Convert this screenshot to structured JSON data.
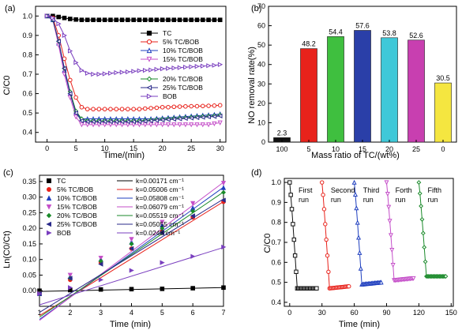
{
  "chart_data": [
    {
      "panel": "(a)",
      "type": "line",
      "xlabel": "Time/(min)",
      "ylabel": "C/C0",
      "xlim": [
        -2,
        31
      ],
      "ylim": [
        0.35,
        1.05
      ],
      "xticks": [
        0,
        5,
        10,
        15,
        20,
        25,
        30
      ],
      "yticks": [
        0.4,
        0.5,
        0.6,
        0.7,
        0.8,
        0.9,
        1.0
      ],
      "x": [
        0,
        1,
        2,
        3,
        4,
        5,
        6,
        7,
        8,
        9,
        10,
        11,
        12,
        13,
        14,
        15,
        16,
        17,
        18,
        19,
        20,
        21,
        22,
        23,
        24,
        25,
        26,
        27,
        28,
        29,
        30
      ],
      "legend": "right",
      "series": [
        {
          "name": "TC",
          "color": "#000000",
          "marker": "square",
          "values": [
            1.0,
            1.0,
            0.995,
            0.99,
            0.985,
            0.982,
            0.98,
            0.98,
            0.98,
            0.98,
            0.98,
            0.98,
            0.98,
            0.98,
            0.98,
            0.98,
            0.98,
            0.98,
            0.98,
            0.98,
            0.98,
            0.98,
            0.98,
            0.98,
            0.98,
            0.98,
            0.98,
            0.98,
            0.98,
            0.98,
            0.98
          ]
        },
        {
          "name": "5% TC/BOB",
          "color": "#e8221b",
          "marker": "circle",
          "values": [
            1.0,
            0.99,
            0.9,
            0.78,
            0.67,
            0.58,
            0.53,
            0.52,
            0.52,
            0.52,
            0.52,
            0.52,
            0.52,
            0.52,
            0.52,
            0.52,
            0.52,
            0.523,
            0.525,
            0.527,
            0.53,
            0.53,
            0.532,
            0.533,
            0.534,
            0.535,
            0.535,
            0.536,
            0.537,
            0.538,
            0.54
          ]
        },
        {
          "name": "10% TC/BOB",
          "color": "#1f3fbf",
          "marker": "triangle-up",
          "values": [
            1.0,
            0.98,
            0.86,
            0.72,
            0.6,
            0.5,
            0.47,
            0.47,
            0.47,
            0.47,
            0.47,
            0.47,
            0.47,
            0.47,
            0.47,
            0.47,
            0.47,
            0.47,
            0.47,
            0.472,
            0.474,
            0.476,
            0.478,
            0.48,
            0.482,
            0.484,
            0.486,
            0.488,
            0.49,
            0.492,
            0.495
          ]
        },
        {
          "name": "15% TC/BOB",
          "color": "#c54fc9",
          "marker": "triangle-down",
          "values": [
            1.0,
            0.98,
            0.85,
            0.7,
            0.58,
            0.48,
            0.44,
            0.44,
            0.44,
            0.44,
            0.44,
            0.44,
            0.44,
            0.44,
            0.44,
            0.44,
            0.44,
            0.44,
            0.44,
            0.44,
            0.44,
            0.44,
            0.44,
            0.44,
            0.44,
            0.44,
            0.44,
            0.44,
            0.44,
            0.445,
            0.45
          ]
        },
        {
          "name": "20% TC/BOB",
          "color": "#1a8a2a",
          "marker": "diamond",
          "values": [
            1.0,
            0.98,
            0.87,
            0.73,
            0.61,
            0.51,
            0.47,
            0.46,
            0.46,
            0.46,
            0.46,
            0.46,
            0.46,
            0.46,
            0.46,
            0.46,
            0.46,
            0.462,
            0.464,
            0.466,
            0.468,
            0.47,
            0.472,
            0.474,
            0.476,
            0.478,
            0.48,
            0.482,
            0.484,
            0.486,
            0.49
          ]
        },
        {
          "name": "25% TC/BOB",
          "color": "#2a2a8a",
          "marker": "triangle-left",
          "values": [
            1.0,
            0.98,
            0.87,
            0.73,
            0.6,
            0.5,
            0.46,
            0.455,
            0.455,
            0.455,
            0.455,
            0.455,
            0.455,
            0.455,
            0.455,
            0.455,
            0.455,
            0.458,
            0.46,
            0.462,
            0.464,
            0.466,
            0.468,
            0.47,
            0.472,
            0.474,
            0.476,
            0.478,
            0.48,
            0.482,
            0.485
          ]
        },
        {
          "name": "BOB",
          "color": "#7a3fbf",
          "marker": "triangle-right",
          "values": [
            1.0,
            0.99,
            0.96,
            0.9,
            0.82,
            0.76,
            0.72,
            0.705,
            0.7,
            0.7,
            0.702,
            0.705,
            0.708,
            0.71,
            0.712,
            0.715,
            0.718,
            0.72,
            0.722,
            0.725,
            0.728,
            0.73,
            0.732,
            0.734,
            0.736,
            0.738,
            0.74,
            0.742,
            0.744,
            0.746,
            0.75
          ]
        }
      ]
    },
    {
      "panel": "(b)",
      "type": "bar",
      "xlabel": "Mass ratio of TC/(wt%)",
      "ylabel": "NO removal rate(%)",
      "ylim": [
        0,
        70
      ],
      "yticks": [
        0,
        10,
        20,
        30,
        40,
        50,
        60,
        70
      ],
      "categories": [
        "100",
        "5",
        "10",
        "15",
        "20",
        "25",
        "0"
      ],
      "values": [
        2.3,
        48.2,
        54.4,
        57.6,
        53.8,
        52.6,
        30.5
      ],
      "value_labels": [
        "2.3",
        "48.2",
        "54.4",
        "57.6",
        "53.8",
        "52.6",
        "30.5"
      ],
      "colors": [
        "#111111",
        "#e8221b",
        "#3fbf3f",
        "#2a3fa8",
        "#3fc8d8",
        "#c83fb0",
        "#f5e640"
      ]
    },
    {
      "panel": "(c)",
      "type": "scatter",
      "xlabel": "Time (min)",
      "ylabel": "Ln(C0/Ct)",
      "xlim": [
        1,
        7
      ],
      "ylim": [
        -0.05,
        0.37
      ],
      "xticks": [
        1,
        2,
        3,
        4,
        5,
        6,
        7
      ],
      "yticks": [
        0.0,
        0.05,
        0.1,
        0.15,
        0.2,
        0.25,
        0.3,
        0.35
      ],
      "ytick_labels": [
        "0.00",
        "0.05",
        "0.10",
        "0.15",
        "0.20",
        "0.25",
        "0.30",
        "0.35"
      ],
      "legend": "top-left",
      "series": [
        {
          "name": "TC",
          "color": "#000000",
          "marker": "square",
          "fit_label": "k=0.00171 cm⁻¹",
          "k": 0.00171,
          "b": -0.002,
          "points": [
            [
              1,
              0.0
            ],
            [
              2,
              0.002
            ],
            [
              3,
              0.004
            ],
            [
              4,
              0.005
            ],
            [
              5,
              0.006
            ],
            [
              6,
              0.008
            ],
            [
              7,
              0.01
            ]
          ]
        },
        {
          "name": "5% TC/BOB",
          "color": "#e8221b",
          "marker": "circle",
          "fit_label": "k=0.05006 cm⁻¹",
          "k": 0.05006,
          "b": -0.065,
          "points": [
            [
              1,
              -0.01
            ],
            [
              2,
              0.035
            ],
            [
              3,
              0.09
            ],
            [
              4,
              0.135
            ],
            [
              5,
              0.19
            ],
            [
              6,
              0.235
            ],
            [
              7,
              0.285
            ]
          ]
        },
        {
          "name": "10% TC/BOB",
          "color": "#1f3fbf",
          "marker": "triangle-up",
          "fit_label": "k=0.05808 cm⁻¹",
          "k": 0.05808,
          "b": -0.075,
          "points": [
            [
              1,
              -0.01
            ],
            [
              2,
              0.045
            ],
            [
              3,
              0.1
            ],
            [
              4,
              0.155
            ],
            [
              5,
              0.21
            ],
            [
              6,
              0.265
            ],
            [
              7,
              0.33
            ]
          ]
        },
        {
          "name": "15% TC/BOB",
          "color": "#c54fc9",
          "marker": "triangle-down",
          "fit_label": "k=0.06079 cm⁻¹",
          "k": 0.06079,
          "b": -0.078,
          "points": [
            [
              1,
              -0.01
            ],
            [
              2,
              0.05
            ],
            [
              3,
              0.105
            ],
            [
              4,
              0.165
            ],
            [
              5,
              0.22
            ],
            [
              6,
              0.28
            ],
            [
              7,
              0.345
            ]
          ]
        },
        {
          "name": "20% TC/BOB",
          "color": "#1a8a2a",
          "marker": "diamond",
          "fit_label": "k=0.05519 cm⁻¹",
          "k": 0.05519,
          "b": -0.07,
          "points": [
            [
              1,
              -0.01
            ],
            [
              2,
              0.04
            ],
            [
              3,
              0.095
            ],
            [
              4,
              0.15
            ],
            [
              5,
              0.2
            ],
            [
              6,
              0.255
            ],
            [
              7,
              0.315
            ]
          ]
        },
        {
          "name": "25% TC/BOB",
          "color": "#2a2a8a",
          "marker": "triangle-left",
          "fit_label": "k=0.05055 cm⁻¹",
          "k": 0.05055,
          "b": -0.06,
          "points": [
            [
              1,
              -0.01
            ],
            [
              2,
              0.04
            ],
            [
              3,
              0.085
            ],
            [
              4,
              0.135
            ],
            [
              5,
              0.185
            ],
            [
              6,
              0.24
            ],
            [
              7,
              0.29
            ]
          ]
        },
        {
          "name": "BOB",
          "color": "#7a3fbf",
          "marker": "triangle-right",
          "fit_label": "k=0.0248 cm⁻¹",
          "k": 0.0248,
          "b": -0.035,
          "points": [
            [
              1,
              -0.01
            ],
            [
              2,
              0.01
            ],
            [
              3,
              0.035
            ],
            [
              4,
              0.065
            ],
            [
              5,
              0.09
            ],
            [
              6,
              0.11
            ],
            [
              7,
              0.14
            ]
          ]
        }
      ]
    },
    {
      "panel": "(d)",
      "type": "line",
      "xlabel": "Time (min)",
      "ylabel": "C/C0",
      "xlim": [
        -5,
        152
      ],
      "ylim": [
        0.38,
        1.02
      ],
      "xticks": [
        0,
        30,
        60,
        90,
        120,
        150
      ],
      "yticks": [
        0.4,
        0.5,
        0.6,
        0.7,
        0.8,
        0.9,
        1.0
      ],
      "ytick_labels": [
        "0.4",
        "0.5",
        "0.6",
        "0.7",
        "0.8",
        "0.9",
        "1.0"
      ],
      "run_labels": [
        "First run",
        "Second run",
        "Third run",
        "Forth run",
        "Fifth run"
      ],
      "runs": [
        {
          "color": "#111111",
          "marker": "square",
          "start": 0,
          "min": 0.47,
          "end": 0.47
        },
        {
          "color": "#e8221b",
          "marker": "circle",
          "start": 30,
          "min": 0.47,
          "end": 0.48
        },
        {
          "color": "#1f3fbf",
          "marker": "triangle-up",
          "start": 60,
          "min": 0.49,
          "end": 0.5
        },
        {
          "color": "#c54fc9",
          "marker": "triangle-down",
          "start": 90,
          "min": 0.51,
          "end": 0.52
        },
        {
          "color": "#1a8a2a",
          "marker": "diamond",
          "start": 120,
          "min": 0.53,
          "end": 0.53
        }
      ]
    }
  ]
}
